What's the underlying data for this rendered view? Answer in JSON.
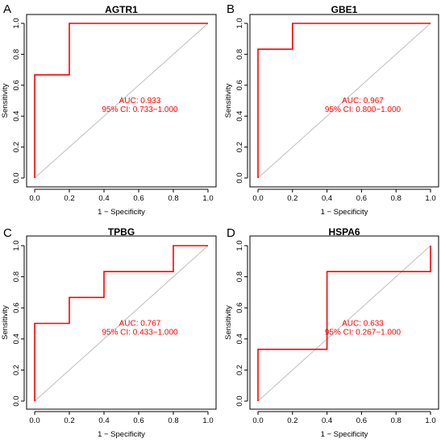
{
  "chart_data": [
    {
      "type": "line",
      "panel_letter": "A",
      "title": "AGTR1",
      "xlabel": "1 − Specificity",
      "ylabel": "Sensitivity",
      "xlim": [
        0,
        1
      ],
      "ylim": [
        0,
        1
      ],
      "xticks": [
        "0.0",
        "0.2",
        "0.4",
        "0.6",
        "0.8",
        "1.0"
      ],
      "yticks": [
        "0.0",
        "0.2",
        "0.4",
        "0.6",
        "0.8",
        "1.0"
      ],
      "grid": false,
      "reference_line": {
        "x": [
          0,
          1
        ],
        "y": [
          0,
          1
        ],
        "color": "#bebebe"
      },
      "series": [
        {
          "color": "#ff0000",
          "x": [
            0,
            0,
            0.2,
            0.2,
            1
          ],
          "y": [
            0,
            0.667,
            0.667,
            1.0,
            1.0
          ]
        }
      ],
      "annotations": [
        "AUC: 0.933",
        "95% CI: 0.733−1.000"
      ]
    },
    {
      "type": "line",
      "panel_letter": "B",
      "title": "GBE1",
      "xlabel": "1 − Specificity",
      "ylabel": "Sensitivity",
      "xlim": [
        0,
        1
      ],
      "ylim": [
        0,
        1
      ],
      "xticks": [
        "0.0",
        "0.2",
        "0.4",
        "0.6",
        "0.8",
        "1.0"
      ],
      "yticks": [
        "0.0",
        "0.2",
        "0.4",
        "0.6",
        "0.8",
        "1.0"
      ],
      "grid": false,
      "reference_line": {
        "x": [
          0,
          1
        ],
        "y": [
          0,
          1
        ],
        "color": "#bebebe"
      },
      "series": [
        {
          "color": "#ff0000",
          "x": [
            0,
            0,
            0.2,
            0.2,
            1
          ],
          "y": [
            0,
            0.833,
            0.833,
            1.0,
            1.0
          ]
        }
      ],
      "annotations": [
        "AUC: 0.967",
        "95% CI: 0.800−1.000"
      ]
    },
    {
      "type": "line",
      "panel_letter": "C",
      "title": "TPBG",
      "xlabel": "1 − Specificity",
      "ylabel": "Sensitivity",
      "xlim": [
        0,
        1
      ],
      "ylim": [
        0,
        1
      ],
      "xticks": [
        "0.0",
        "0.2",
        "0.4",
        "0.6",
        "0.8",
        "1.0"
      ],
      "yticks": [
        "0.0",
        "0.2",
        "0.4",
        "0.6",
        "0.8",
        "1.0"
      ],
      "grid": false,
      "reference_line": {
        "x": [
          0,
          1
        ],
        "y": [
          0,
          1
        ],
        "color": "#bebebe"
      },
      "series": [
        {
          "color": "#ff0000",
          "x": [
            0,
            0,
            0.2,
            0.2,
            0.4,
            0.4,
            0.8,
            0.8,
            1
          ],
          "y": [
            0,
            0.5,
            0.5,
            0.667,
            0.667,
            0.833,
            0.833,
            1.0,
            1.0
          ]
        }
      ],
      "annotations": [
        "AUC: 0.767",
        "95% CI: 0.433−1.000"
      ]
    },
    {
      "type": "line",
      "panel_letter": "D",
      "title": "HSPA6",
      "xlabel": "1 − Specificity",
      "ylabel": "Sensitivity",
      "xlim": [
        0,
        1
      ],
      "ylim": [
        0,
        1
      ],
      "xticks": [
        "0.0",
        "0.2",
        "0.4",
        "0.6",
        "0.8",
        "1.0"
      ],
      "yticks": [
        "0.0",
        "0.2",
        "0.4",
        "0.6",
        "0.8",
        "1.0"
      ],
      "grid": false,
      "reference_line": {
        "x": [
          0,
          1
        ],
        "y": [
          0,
          1
        ],
        "color": "#bebebe"
      },
      "series": [
        {
          "color": "#ff0000",
          "x": [
            0,
            0,
            0.4,
            0.4,
            1,
            1
          ],
          "y": [
            0,
            0.333,
            0.333,
            0.833,
            0.833,
            1.0
          ]
        }
      ],
      "annotations": [
        "AUC: 0.633",
        "95% CI: 0.267−1.000"
      ]
    }
  ]
}
